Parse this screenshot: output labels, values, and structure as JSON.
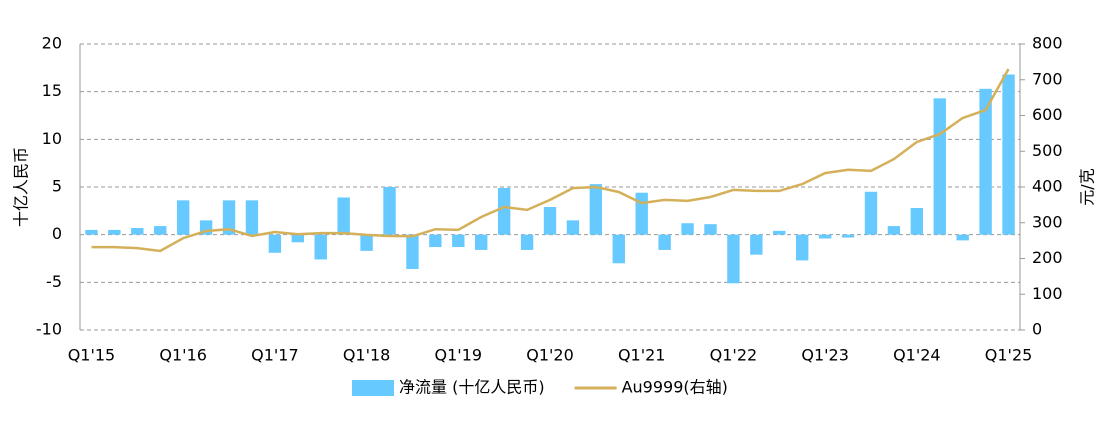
{
  "chart_data": {
    "type": "bar_line",
    "categories": [
      "Q1'15",
      null,
      null,
      null,
      "Q1'16",
      null,
      null,
      null,
      "Q1'17",
      null,
      null,
      null,
      "Q1'18",
      null,
      null,
      null,
      "Q1'19",
      null,
      null,
      null,
      "Q1'20",
      null,
      null,
      null,
      "Q1'21",
      null,
      null,
      null,
      "Q1'22",
      null,
      null,
      null,
      "Q1'23",
      null,
      null,
      null,
      "Q1'24",
      null,
      null,
      null,
      "Q1'25"
    ],
    "y_label": "十亿人民币",
    "y2_label": "元/克",
    "series": [
      {
        "name": "净流量 (十亿人民币)",
        "color": "#66c9ff",
        "type": "bar",
        "values": [
          0.5,
          0.5,
          0.7,
          0.9,
          3.6,
          1.5,
          3.6,
          3.6,
          -1.9,
          -0.8,
          -2.6,
          3.9,
          -1.7,
          5.0,
          -3.6,
          -1.3,
          -1.3,
          -1.6,
          4.9,
          -1.6,
          2.9,
          1.5,
          5.3,
          -3.0,
          4.4,
          -1.6,
          1.2,
          1.1,
          -5.1,
          -2.1,
          0.4,
          -2.7,
          -0.4,
          -0.3,
          4.5,
          0.9,
          2.8,
          14.3,
          -0.6,
          15.3,
          16.8
        ]
      },
      {
        "name": "Au9999(右轴)",
        "color": "#d4b05a",
        "type": "line",
        "axis": "y2",
        "values": [
          232,
          232,
          229,
          221,
          257,
          277,
          282,
          263,
          274,
          268,
          271,
          271,
          266,
          263,
          262,
          282,
          280,
          316,
          344,
          336,
          364,
          397,
          400,
          386,
          355,
          364,
          361,
          372,
          392,
          389,
          389,
          408,
          439,
          448,
          445,
          478,
          526,
          548,
          593,
          615,
          730
        ]
      }
    ],
    "ylim": [
      -10,
      20
    ],
    "yticks": [
      -10,
      -5,
      0,
      5,
      10,
      15,
      20
    ],
    "y2lim": [
      0,
      800
    ],
    "y2ticks": [
      0,
      100,
      200,
      300,
      400,
      500,
      600,
      700,
      800
    ],
    "grid": true,
    "legend": "bottom"
  }
}
